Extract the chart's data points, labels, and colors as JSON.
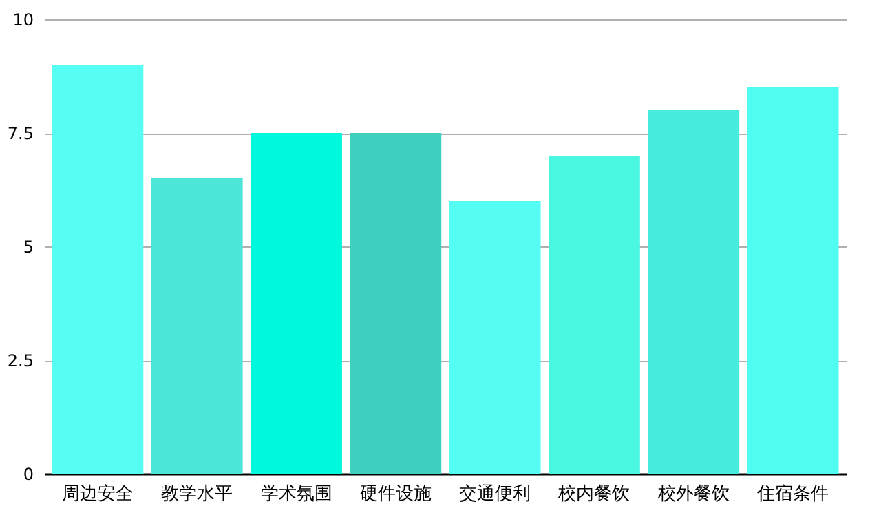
{
  "chart_data": {
    "type": "bar",
    "categories": [
      "周边安全",
      "教学水平",
      "学术氛围",
      "硬件设施",
      "交通便利",
      "校内餐饮",
      "校外餐饮",
      "住宿条件"
    ],
    "values": [
      9,
      6.5,
      7.5,
      7.5,
      6,
      7,
      8,
      8.5
    ],
    "colors": [
      "#55fdf3",
      "#4ce6d8",
      "#00f8dc",
      "#40d0bf",
      "#55fcf3",
      "#4af8e2",
      "#48ecdc",
      "#50fbf1"
    ],
    "ylim": [
      0,
      10
    ],
    "yticks": [
      0,
      2.5,
      5,
      7.5,
      10
    ],
    "grid": "y"
  }
}
